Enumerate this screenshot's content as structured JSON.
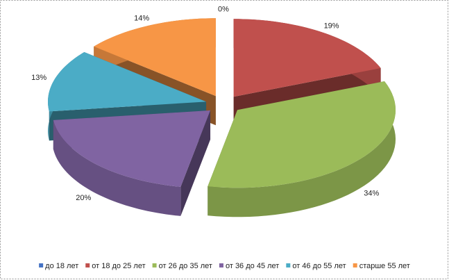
{
  "chart_data": {
    "type": "pie3d",
    "categories": [
      "до 18 лет",
      "от 18 до 25 лет",
      "от 26 до 35 лет",
      "от 36 до 45 лет",
      "от 46 до 55 лет",
      "старше 55 лет"
    ],
    "values": [
      0,
      19,
      34,
      20,
      13,
      14
    ],
    "value_labels": [
      "0%",
      "19%",
      "34%",
      "20%",
      "13%",
      "14%"
    ],
    "colors": [
      "#4472c4",
      "#c0504d",
      "#9bbb59",
      "#8064a2",
      "#4bacc6",
      "#f79646"
    ],
    "legend": "bottom"
  }
}
